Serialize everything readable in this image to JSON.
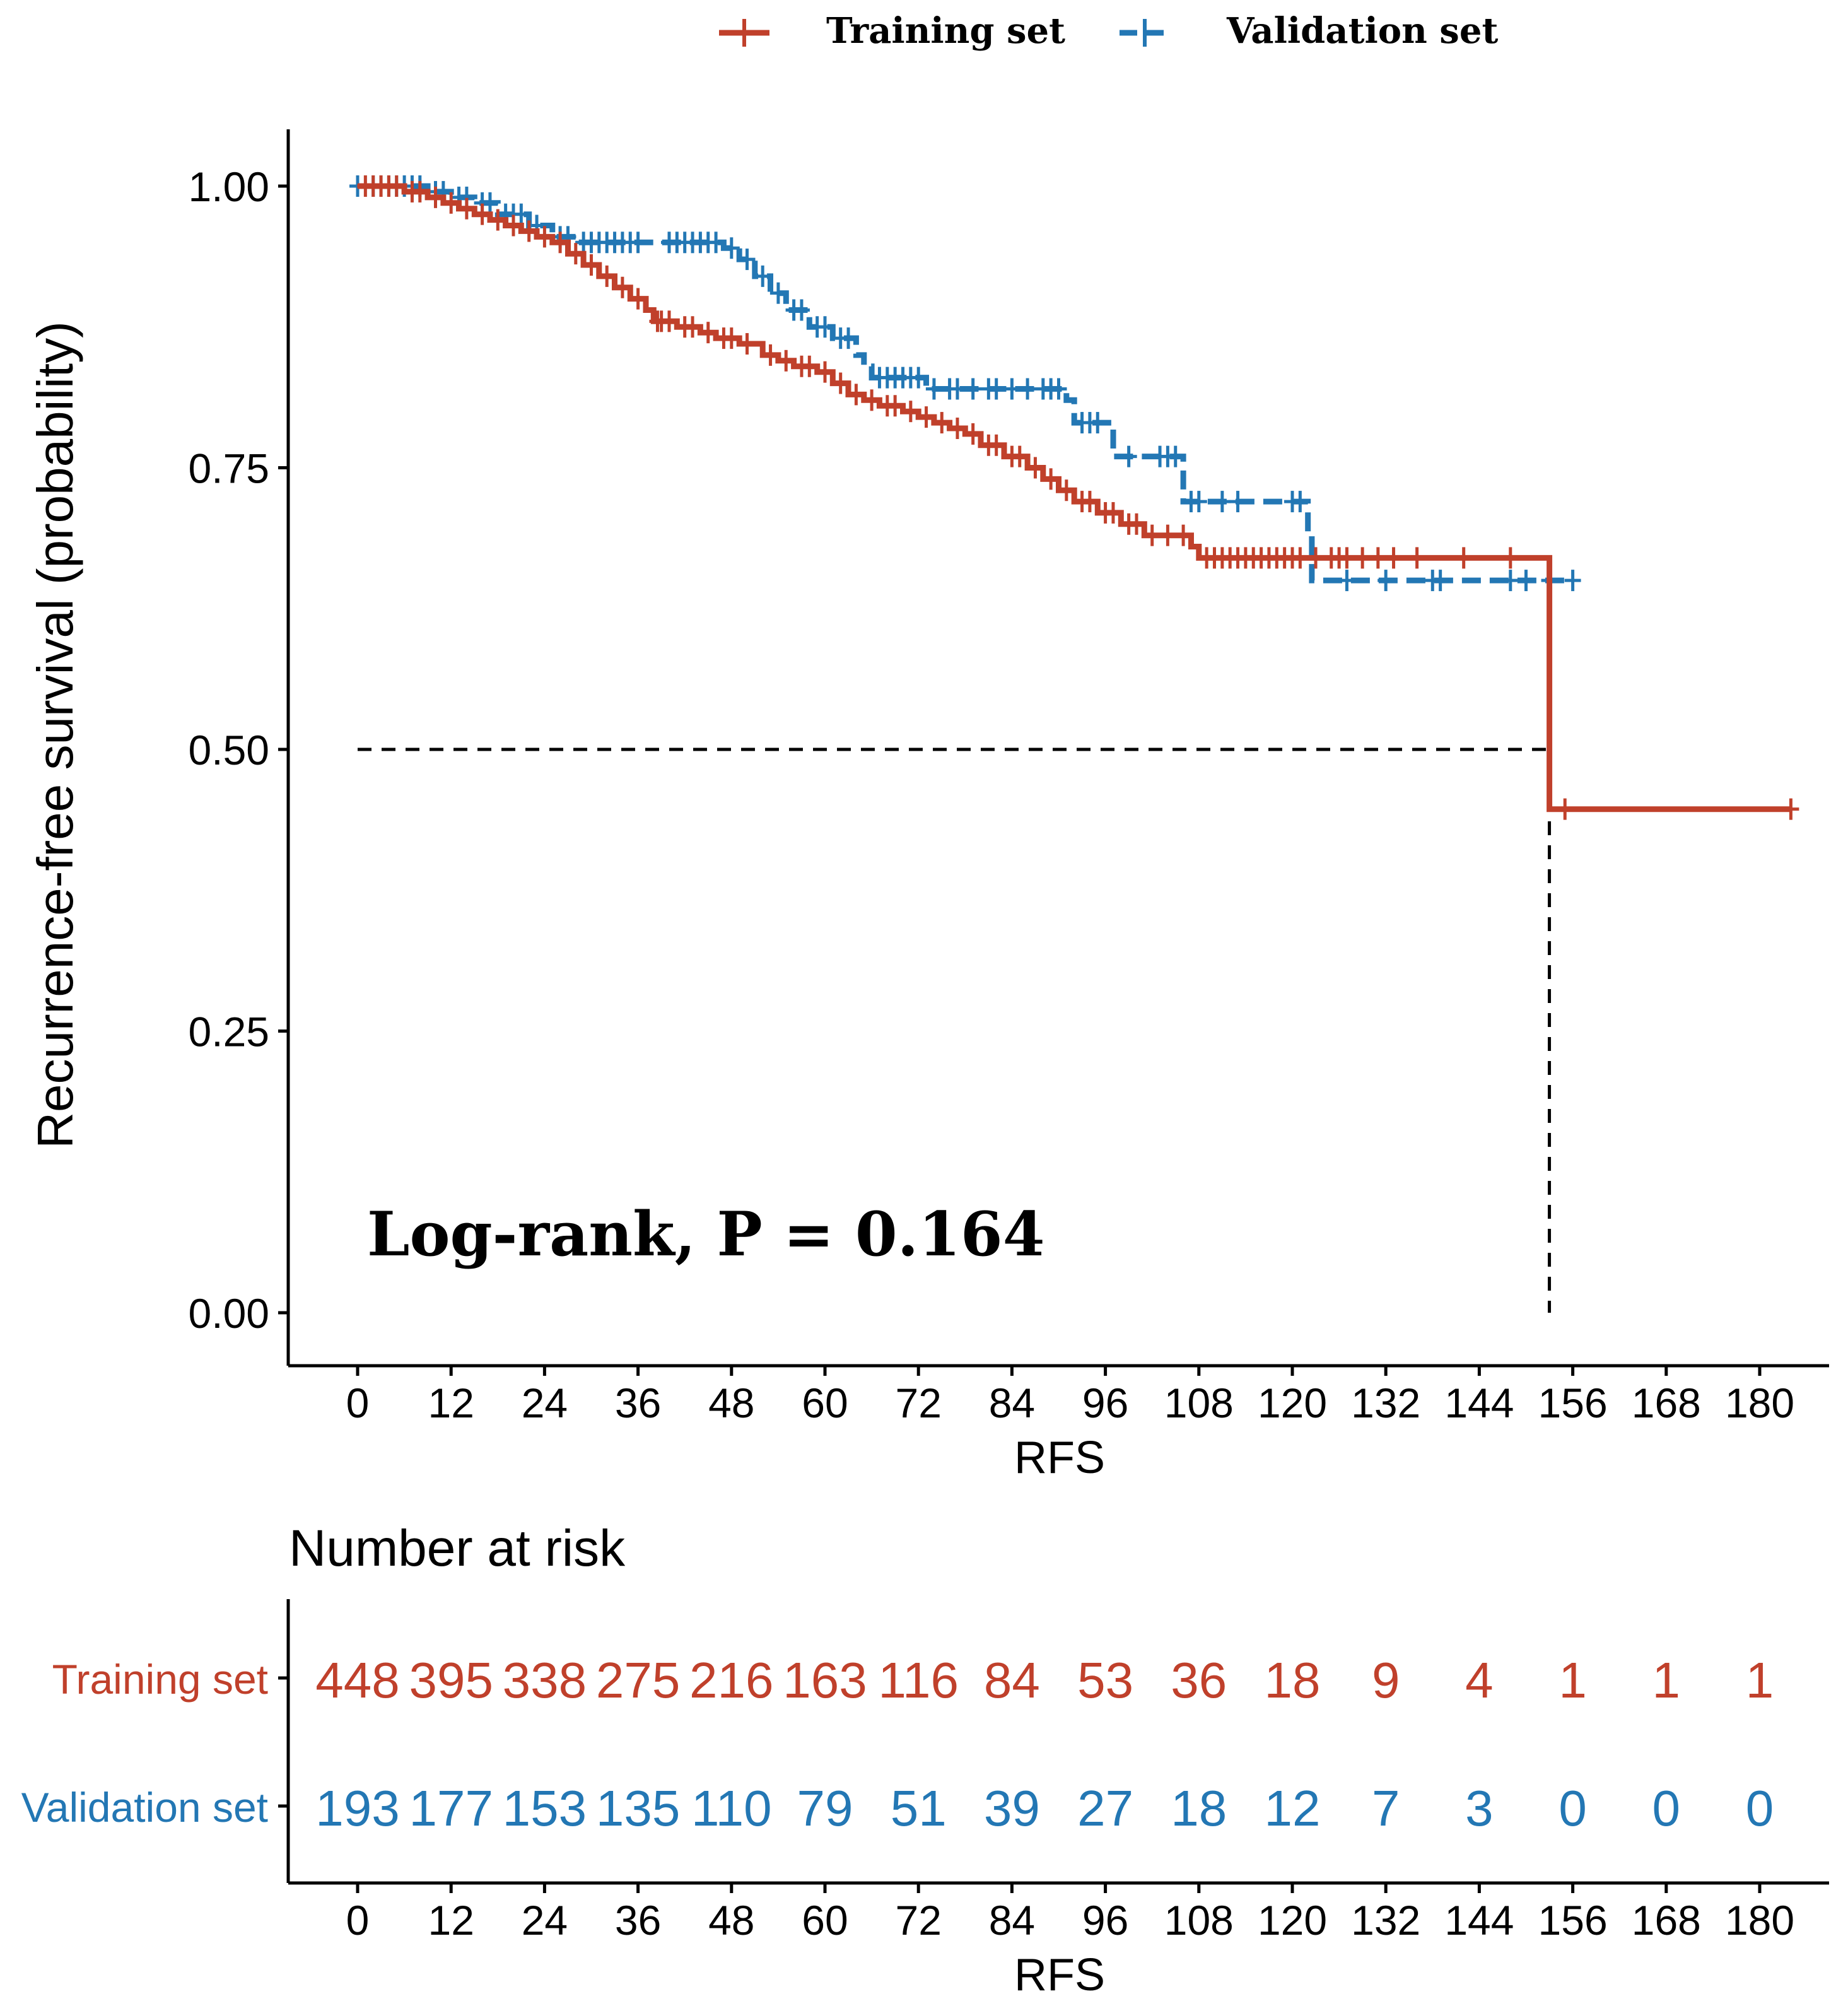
{
  "chart_data": {
    "type": "line",
    "subtype": "kaplan-meier",
    "ylabel": "Recurrence-free survival (probability)",
    "xlabel": "RFS",
    "annotation": "Log-rank, P = 0.164",
    "xlim": [
      0,
      184
    ],
    "ylim": [
      0,
      1
    ],
    "x_ticks": [
      "0",
      "12",
      "24",
      "36",
      "48",
      "60",
      "72",
      "84",
      "96",
      "108",
      "120",
      "132",
      "144",
      "156",
      "168",
      "180"
    ],
    "y_ticks": [
      "0.00",
      "0.25",
      "0.50",
      "0.75",
      "1.00"
    ],
    "legend": {
      "position": "top",
      "entries": [
        "Training set",
        "Validation set"
      ]
    },
    "median_reference": {
      "y": 0.5,
      "x": 153
    },
    "series": [
      {
        "name": "Training set",
        "color": "#c0402b",
        "dash": "solid",
        "steps": [
          [
            0,
            1.0
          ],
          [
            6,
            0.995
          ],
          [
            9,
            0.99
          ],
          [
            11,
            0.985
          ],
          [
            13,
            0.98
          ],
          [
            15,
            0.975
          ],
          [
            17,
            0.97
          ],
          [
            19,
            0.965
          ],
          [
            21,
            0.96
          ],
          [
            23,
            0.955
          ],
          [
            25,
            0.95
          ],
          [
            27,
            0.94
          ],
          [
            29,
            0.93
          ],
          [
            31,
            0.92
          ],
          [
            33,
            0.91
          ],
          [
            35,
            0.9
          ],
          [
            37,
            0.89
          ],
          [
            38,
            0.88
          ],
          [
            41,
            0.875
          ],
          [
            44,
            0.87
          ],
          [
            46,
            0.865
          ],
          [
            49,
            0.86
          ],
          [
            52,
            0.85
          ],
          [
            54,
            0.845
          ],
          [
            56,
            0.84
          ],
          [
            59,
            0.835
          ],
          [
            61,
            0.825
          ],
          [
            63,
            0.815
          ],
          [
            65,
            0.81
          ],
          [
            67,
            0.805
          ],
          [
            70,
            0.8
          ],
          [
            72,
            0.795
          ],
          [
            74,
            0.79
          ],
          [
            76,
            0.785
          ],
          [
            78,
            0.78
          ],
          [
            80,
            0.77
          ],
          [
            83,
            0.76
          ],
          [
            86,
            0.75
          ],
          [
            88,
            0.74
          ],
          [
            90,
            0.73
          ],
          [
            92,
            0.72
          ],
          [
            95,
            0.71
          ],
          [
            98,
            0.7
          ],
          [
            101,
            0.69
          ],
          [
            107,
            0.68
          ],
          [
            108,
            0.67
          ],
          [
            153,
            0.447
          ],
          [
            184,
            0.447
          ]
        ],
        "censors": [
          [
            1,
            1
          ],
          [
            2,
            1
          ],
          [
            3,
            1
          ],
          [
            4,
            1
          ],
          [
            5,
            1
          ],
          [
            7,
            0.995
          ],
          [
            8,
            0.995
          ],
          [
            10,
            0.99
          ],
          [
            12,
            0.985
          ],
          [
            14,
            0.98
          ],
          [
            16,
            0.975
          ],
          [
            18,
            0.97
          ],
          [
            20,
            0.965
          ],
          [
            22,
            0.96
          ],
          [
            24,
            0.955
          ],
          [
            26,
            0.95
          ],
          [
            28,
            0.94
          ],
          [
            30,
            0.93
          ],
          [
            32,
            0.92
          ],
          [
            34,
            0.91
          ],
          [
            36,
            0.9
          ],
          [
            38.5,
            0.88
          ],
          [
            39,
            0.88
          ],
          [
            40,
            0.88
          ],
          [
            42,
            0.875
          ],
          [
            43,
            0.875
          ],
          [
            45,
            0.87
          ],
          [
            47,
            0.865
          ],
          [
            48,
            0.865
          ],
          [
            50,
            0.86
          ],
          [
            53,
            0.85
          ],
          [
            55,
            0.845
          ],
          [
            57,
            0.84
          ],
          [
            58,
            0.84
          ],
          [
            60,
            0.835
          ],
          [
            62,
            0.825
          ],
          [
            64,
            0.815
          ],
          [
            66,
            0.81
          ],
          [
            68,
            0.805
          ],
          [
            69,
            0.805
          ],
          [
            71,
            0.8
          ],
          [
            73,
            0.795
          ],
          [
            75,
            0.79
          ],
          [
            77,
            0.785
          ],
          [
            79,
            0.78
          ],
          [
            81,
            0.77
          ],
          [
            82,
            0.77
          ],
          [
            84,
            0.76
          ],
          [
            85,
            0.76
          ],
          [
            87,
            0.75
          ],
          [
            89,
            0.74
          ],
          [
            91,
            0.73
          ],
          [
            93,
            0.72
          ],
          [
            94,
            0.72
          ],
          [
            96,
            0.71
          ],
          [
            97,
            0.71
          ],
          [
            99,
            0.7
          ],
          [
            100,
            0.7
          ],
          [
            102,
            0.69
          ],
          [
            104,
            0.69
          ],
          [
            106,
            0.69
          ],
          [
            109,
            0.67
          ],
          [
            110,
            0.67
          ],
          [
            111,
            0.67
          ],
          [
            112,
            0.67
          ],
          [
            113,
            0.67
          ],
          [
            114,
            0.67
          ],
          [
            115,
            0.67
          ],
          [
            116,
            0.67
          ],
          [
            117,
            0.67
          ],
          [
            118,
            0.67
          ],
          [
            119,
            0.67
          ],
          [
            120,
            0.67
          ],
          [
            121,
            0.67
          ],
          [
            123,
            0.67
          ],
          [
            125,
            0.67
          ],
          [
            126,
            0.67
          ],
          [
            127,
            0.67
          ],
          [
            129,
            0.67
          ],
          [
            131,
            0.67
          ],
          [
            133,
            0.67
          ],
          [
            136,
            0.67
          ],
          [
            142,
            0.67
          ],
          [
            148,
            0.67
          ],
          [
            155,
            0.447
          ],
          [
            184,
            0.447
          ]
        ]
      },
      {
        "name": "Validation set",
        "color": "#2377b4",
        "dash": "dashed",
        "steps": [
          [
            0,
            1.0
          ],
          [
            9,
            0.995
          ],
          [
            12,
            0.99
          ],
          [
            15,
            0.985
          ],
          [
            18,
            0.975
          ],
          [
            22,
            0.965
          ],
          [
            25,
            0.955
          ],
          [
            28,
            0.95
          ],
          [
            47,
            0.945
          ],
          [
            49,
            0.935
          ],
          [
            51,
            0.92
          ],
          [
            53,
            0.905
          ],
          [
            55,
            0.89
          ],
          [
            58,
            0.875
          ],
          [
            61,
            0.865
          ],
          [
            64,
            0.85
          ],
          [
            65,
            0.84
          ],
          [
            66,
            0.83
          ],
          [
            73,
            0.82
          ],
          [
            91,
            0.81
          ],
          [
            92,
            0.79
          ],
          [
            97,
            0.76
          ],
          [
            106,
            0.72
          ],
          [
            122,
            0.69
          ],
          [
            122.5,
            0.65
          ],
          [
            156,
            0.65
          ]
        ],
        "censors": [
          [
            0,
            1
          ],
          [
            2,
            1
          ],
          [
            3,
            1
          ],
          [
            4,
            1
          ],
          [
            5,
            1
          ],
          [
            6,
            1
          ],
          [
            7,
            1
          ],
          [
            8,
            1
          ],
          [
            10,
            0.995
          ],
          [
            11,
            0.995
          ],
          [
            13,
            0.99
          ],
          [
            14,
            0.99
          ],
          [
            16,
            0.985
          ],
          [
            17,
            0.985
          ],
          [
            19,
            0.975
          ],
          [
            20,
            0.975
          ],
          [
            21,
            0.975
          ],
          [
            23,
            0.965
          ],
          [
            26,
            0.955
          ],
          [
            27,
            0.955
          ],
          [
            29,
            0.95
          ],
          [
            30,
            0.95
          ],
          [
            31,
            0.95
          ],
          [
            32,
            0.95
          ],
          [
            33,
            0.95
          ],
          [
            34,
            0.95
          ],
          [
            35,
            0.95
          ],
          [
            36,
            0.95
          ],
          [
            40,
            0.95
          ],
          [
            41,
            0.95
          ],
          [
            42,
            0.95
          ],
          [
            43,
            0.95
          ],
          [
            44,
            0.95
          ],
          [
            45,
            0.95
          ],
          [
            46,
            0.95
          ],
          [
            48,
            0.945
          ],
          [
            50,
            0.935
          ],
          [
            52,
            0.92
          ],
          [
            54,
            0.905
          ],
          [
            56,
            0.89
          ],
          [
            57,
            0.89
          ],
          [
            59,
            0.875
          ],
          [
            60,
            0.875
          ],
          [
            62,
            0.865
          ],
          [
            63,
            0.865
          ],
          [
            67,
            0.83
          ],
          [
            68,
            0.83
          ],
          [
            69,
            0.83
          ],
          [
            70,
            0.83
          ],
          [
            71,
            0.83
          ],
          [
            72,
            0.83
          ],
          [
            74,
            0.82
          ],
          [
            76,
            0.82
          ],
          [
            77,
            0.82
          ],
          [
            79,
            0.82
          ],
          [
            81,
            0.82
          ],
          [
            82,
            0.82
          ],
          [
            84,
            0.82
          ],
          [
            86,
            0.82
          ],
          [
            88,
            0.82
          ],
          [
            89,
            0.82
          ],
          [
            90,
            0.82
          ],
          [
            93,
            0.79
          ],
          [
            94,
            0.79
          ],
          [
            95,
            0.79
          ],
          [
            99,
            0.76
          ],
          [
            103,
            0.76
          ],
          [
            104,
            0.76
          ],
          [
            105,
            0.76
          ],
          [
            107,
            0.72
          ],
          [
            108,
            0.72
          ],
          [
            111,
            0.72
          ],
          [
            113,
            0.72
          ],
          [
            120,
            0.72
          ],
          [
            121,
            0.72
          ],
          [
            127,
            0.65
          ],
          [
            132,
            0.65
          ],
          [
            138,
            0.65
          ],
          [
            139,
            0.65
          ],
          [
            148,
            0.65
          ],
          [
            150,
            0.65
          ],
          [
            153,
            0.65
          ],
          [
            156,
            0.65
          ]
        ]
      }
    ],
    "risk_table": {
      "title": "Number at risk",
      "xlabel": "RFS",
      "x_ticks": [
        "0",
        "12",
        "24",
        "36",
        "48",
        "60",
        "72",
        "84",
        "96",
        "108",
        "120",
        "132",
        "144",
        "156",
        "168",
        "180"
      ],
      "rows": [
        {
          "name": "Training set",
          "color": "#c0402b",
          "values": [
            "448",
            "395",
            "338",
            "275",
            "216",
            "163",
            "116",
            "84",
            "53",
            "36",
            "18",
            "9",
            "4",
            "1",
            "1",
            "1"
          ]
        },
        {
          "name": "Validation set",
          "color": "#2377b4",
          "values": [
            "193",
            "177",
            "153",
            "135",
            "110",
            "79",
            "51",
            "39",
            "27",
            "18",
            "12",
            "7",
            "3",
            "0",
            "0",
            "0"
          ]
        }
      ]
    }
  }
}
